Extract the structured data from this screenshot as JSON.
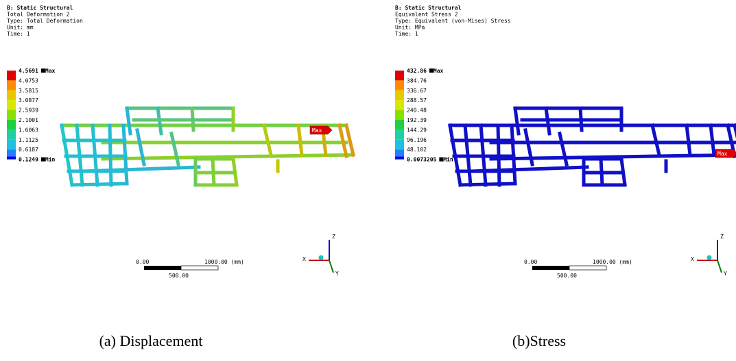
{
  "panels": [
    {
      "header": [
        "B: Static Structural",
        "Total Deformation 2",
        "Type: Total Deformation",
        "Unit: mm",
        "Time: 1"
      ],
      "legend": {
        "values": [
          "4.5691",
          "4.0753",
          "3.5815",
          "3.0877",
          "2.5939",
          "2.1001",
          "1.6063",
          "1.1125",
          "0.6187",
          "0.1249"
        ],
        "max_tag": "Max",
        "min_tag": "Min"
      },
      "probe": "Max",
      "scale": {
        "left": "0.00",
        "right": "1000.00 (mm)",
        "mid": "500.00"
      },
      "triad": {
        "z": "Z",
        "x": "X",
        "y": "Y"
      },
      "caption": "(a) Displacement"
    },
    {
      "header": [
        "B: Static Structural",
        "Equivalent Stress 2",
        "Type: Equivalent (von-Mises) Stress",
        "Unit: MPa",
        "Time: 1"
      ],
      "legend": {
        "values": [
          "432.86",
          "384.76",
          "336.67",
          "288.57",
          "240.48",
          "192.39",
          "144.29",
          "96.196",
          "48.102",
          "0.0073205"
        ],
        "max_tag": "Max",
        "min_tag": "Min"
      },
      "probe": "Max",
      "scale": {
        "left": "0.00",
        "right": "1000.00 (mm)",
        "mid": "500.00"
      },
      "triad": {
        "z": "Z",
        "x": "X",
        "y": "Y"
      },
      "caption": "(b)Stress"
    }
  ]
}
